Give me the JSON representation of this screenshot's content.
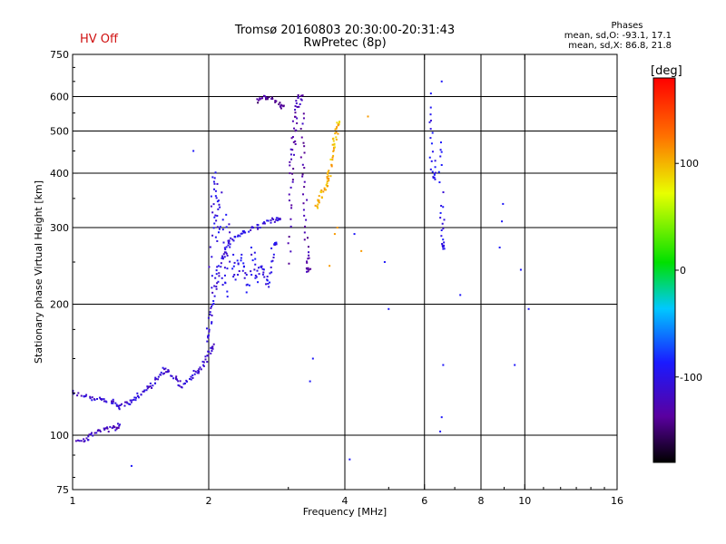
{
  "header": {
    "hv_status": "HV Off",
    "title_line1": "Tromsø 20160803 20:30:00-20:31:43",
    "title_line2": "RwPretec (8p)",
    "phases_title": "Phases",
    "phases_o": "mean, sd,O: -93.1, 17.1",
    "phases_x": "mean, sd,X: 86.8, 21.8"
  },
  "colorbar": {
    "unit": "[deg]",
    "range": [
      -180,
      180
    ],
    "ticks": [
      100,
      0,
      -100
    ]
  },
  "chart_data": {
    "type": "scatter",
    "xlabel": "Frequency [MHz]",
    "ylabel": "Stationary phase Virtual Height [km]",
    "xscale": "log",
    "yscale": "log",
    "xlim": [
      1,
      16
    ],
    "ylim": [
      75,
      750
    ],
    "xticks": [
      1,
      2,
      4,
      6,
      8,
      10,
      16
    ],
    "yticks": [
      75,
      100,
      200,
      300,
      400,
      500,
      600,
      750
    ],
    "xgrid": [
      2,
      4,
      6,
      8,
      10
    ],
    "ygrid": [
      100,
      200,
      300,
      400,
      500,
      600
    ],
    "grid": true,
    "color_encoding": "phase in degrees (colorbar)",
    "traces": [
      {
        "name": "low_layer_lower",
        "points": [
          [
            1.03,
            98
          ],
          [
            1.06,
            97
          ],
          [
            1.1,
            100
          ],
          [
            1.14,
            102
          ],
          [
            1.18,
            104
          ],
          [
            1.22,
            103
          ],
          [
            1.26,
            105
          ]
        ],
        "phase": -120
      },
      {
        "name": "low_layer_upper",
        "points": [
          [
            1.0,
            126
          ],
          [
            1.05,
            124
          ],
          [
            1.1,
            122
          ],
          [
            1.15,
            121
          ],
          [
            1.2,
            120
          ],
          [
            1.25,
            118
          ],
          [
            1.28,
            116
          ],
          [
            1.32,
            118
          ],
          [
            1.36,
            121
          ],
          [
            1.4,
            124
          ],
          [
            1.44,
            126
          ],
          [
            1.48,
            129
          ],
          [
            1.52,
            133
          ],
          [
            1.56,
            138
          ],
          [
            1.6,
            142
          ],
          [
            1.65,
            138
          ],
          [
            1.7,
            134
          ],
          [
            1.75,
            130
          ],
          [
            1.8,
            134
          ],
          [
            1.85,
            138
          ],
          [
            1.9,
            141
          ],
          [
            1.95,
            146
          ],
          [
            2.0,
            152
          ],
          [
            2.03,
            160
          ]
        ],
        "phase": -110
      },
      {
        "name": "f_trace",
        "points": [
          [
            1.97,
            165
          ],
          [
            2.0,
            175
          ],
          [
            2.02,
            190
          ],
          [
            2.05,
            205
          ],
          [
            2.08,
            225
          ],
          [
            2.1,
            240
          ],
          [
            2.14,
            255
          ],
          [
            2.18,
            265
          ],
          [
            2.22,
            275
          ],
          [
            2.28,
            285
          ],
          [
            2.36,
            292
          ],
          [
            2.45,
            296
          ],
          [
            2.55,
            300
          ],
          [
            2.65,
            305
          ],
          [
            2.75,
            310
          ],
          [
            2.85,
            315
          ]
        ],
        "phase": -105
      },
      {
        "name": "f_trace_scatter",
        "points": [
          [
            2.02,
            220
          ],
          [
            2.04,
            300
          ],
          [
            2.05,
            350
          ],
          [
            2.06,
            400
          ],
          [
            2.08,
            330
          ],
          [
            2.1,
            280
          ],
          [
            2.12,
            360
          ],
          [
            2.15,
            240
          ],
          [
            2.18,
            210
          ],
          [
            2.2,
            320
          ],
          [
            2.25,
            250
          ],
          [
            2.3,
            230
          ],
          [
            2.35,
            260
          ],
          [
            2.4,
            240
          ],
          [
            2.45,
            215
          ],
          [
            2.5,
            270
          ],
          [
            2.55,
            225
          ],
          [
            2.6,
            245
          ],
          [
            2.65,
            235
          ],
          [
            2.7,
            220
          ],
          [
            2.75,
            250
          ],
          [
            2.8,
            275
          ]
        ],
        "phase": -100
      },
      {
        "name": "upper_column",
        "points": [
          [
            3.0,
            250
          ],
          [
            3.02,
            330
          ],
          [
            3.04,
            390
          ],
          [
            3.06,
            430
          ],
          [
            3.08,
            470
          ],
          [
            3.1,
            510
          ],
          [
            3.12,
            550
          ],
          [
            3.15,
            590
          ],
          [
            3.2,
            610
          ],
          [
            3.22,
            500
          ],
          [
            3.24,
            420
          ],
          [
            3.26,
            360
          ],
          [
            3.28,
            300
          ],
          [
            3.3,
            260
          ],
          [
            3.32,
            240
          ]
        ],
        "phase": -130
      },
      {
        "name": "upper_arc",
        "points": [
          [
            2.55,
            580
          ],
          [
            2.62,
            595
          ],
          [
            2.7,
            600
          ],
          [
            2.8,
            590
          ],
          [
            2.9,
            570
          ]
        ],
        "phase": -140
      },
      {
        "name": "yellow_cluster",
        "points": [
          [
            3.45,
            335
          ],
          [
            3.5,
            345
          ],
          [
            3.55,
            360
          ],
          [
            3.6,
            370
          ],
          [
            3.65,
            385
          ],
          [
            3.7,
            395
          ],
          [
            3.72,
            420
          ],
          [
            3.75,
            450
          ],
          [
            3.78,
            470
          ],
          [
            3.82,
            490
          ],
          [
            3.86,
            520
          ]
        ],
        "phase": 100
      },
      {
        "name": "yellow_sparse",
        "points": [
          [
            3.7,
            245
          ],
          [
            3.8,
            290
          ],
          [
            3.85,
            300
          ],
          [
            4.5,
            540
          ],
          [
            4.35,
            265
          ]
        ],
        "phase": 110
      },
      {
        "name": "high_freq_column",
        "points": [
          [
            6.2,
            560
          ],
          [
            6.22,
            480
          ],
          [
            6.25,
            400
          ],
          [
            6.3,
            390
          ],
          [
            6.5,
            470
          ],
          [
            6.55,
            340
          ],
          [
            6.6,
            300
          ],
          [
            6.58,
            270
          ]
        ],
        "phase": -95
      },
      {
        "name": "sparse_points",
        "points": [
          [
            4.1,
            88
          ],
          [
            5.0,
            195
          ],
          [
            4.9,
            250
          ],
          [
            4.2,
            290
          ],
          [
            7.2,
            210
          ],
          [
            8.8,
            270
          ],
          [
            8.9,
            310
          ],
          [
            8.95,
            340
          ],
          [
            9.8,
            240
          ],
          [
            10.2,
            195
          ],
          [
            9.5,
            145
          ],
          [
            6.55,
            110
          ],
          [
            6.5,
            102
          ],
          [
            6.6,
            145
          ],
          [
            3.4,
            150
          ],
          [
            3.35,
            133
          ],
          [
            1.35,
            85
          ],
          [
            1.85,
            450
          ],
          [
            6.2,
            610
          ],
          [
            6.55,
            650
          ]
        ],
        "phase": -90
      }
    ]
  }
}
